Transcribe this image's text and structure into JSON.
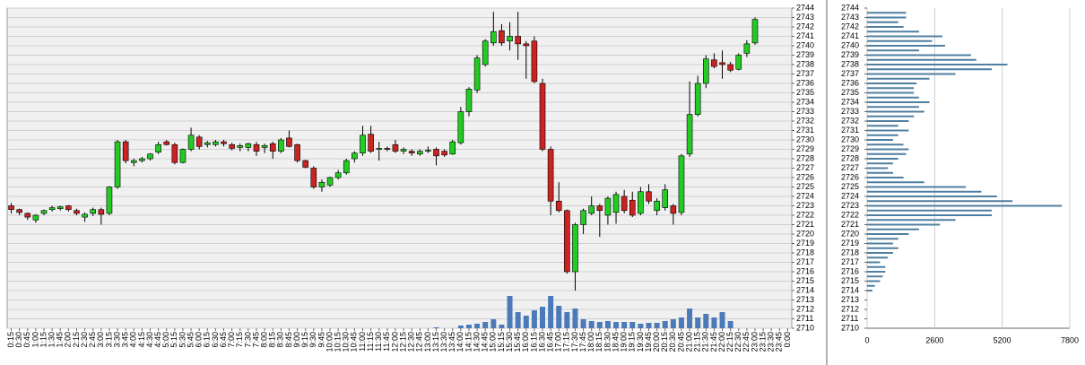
{
  "chart_data": [
    {
      "type": "candlestick",
      "categories": [
        "0:15",
        "0:30",
        "0:45",
        "1:00",
        "1:15",
        "1:30",
        "1:45",
        "2:00",
        "2:15",
        "2:30",
        "2:45",
        "3:00",
        "3:15",
        "3:30",
        "3:45",
        "4:00",
        "4:15",
        "4:30",
        "4:45",
        "5:00",
        "5:15",
        "5:30",
        "5:45",
        "6:00",
        "6:15",
        "6:30",
        "6:45",
        "7:00",
        "7:15",
        "7:30",
        "7:45",
        "8:00",
        "8:15",
        "8:30",
        "8:45",
        "9:00",
        "9:15",
        "9:30",
        "9:45",
        "10:00",
        "10:15",
        "10:30",
        "10:45",
        "11:00",
        "11:15",
        "11:30",
        "11:45",
        "12:00",
        "12:15",
        "12:30",
        "12:45",
        "13:00",
        "13:15",
        "13:30",
        "13:45",
        "14:00",
        "14:15",
        "14:30",
        "14:45",
        "15:00",
        "15:15",
        "15:30",
        "15:45",
        "16:00",
        "16:15",
        "16:30",
        "16:45",
        "17:00",
        "17:15",
        "17:30",
        "17:45",
        "18:00",
        "18:15",
        "18:30",
        "18:45",
        "19:00",
        "19:15",
        "19:30",
        "19:45",
        "20:00",
        "20:15",
        "20:30",
        "20:45",
        "21:00",
        "21:15",
        "21:30",
        "21:45",
        "22:00",
        "22:15",
        "22:30",
        "22:45",
        "23:00",
        "23:15",
        "23:30",
        "23:45",
        "0:00"
      ],
      "open": [
        2723,
        2722.6,
        2722.2,
        2721.5,
        2722.2,
        2722.6,
        2722.7,
        2723,
        2722.5,
        2721.8,
        2722.2,
        2722.6,
        2722.2,
        2725,
        2729.8,
        2727.6,
        2727.8,
        2728,
        2728.7,
        2729.8,
        2729.5,
        2727.6,
        2729,
        2730.3,
        2729.5,
        2729.5,
        2729.8,
        2729.5,
        2729.2,
        2729.2,
        2729.5,
        2729.2,
        2729.6,
        2728.8,
        2730.2,
        2729.5,
        2727.8,
        2727,
        2725,
        2725.2,
        2726,
        2726.5,
        2728,
        2728.6,
        2730.6,
        2729,
        2729.1,
        2729.5,
        2728.8,
        2728.8,
        2728.5,
        2728.8,
        2729,
        2728.8,
        2728.5,
        2729.7,
        2733,
        2735.3,
        2738,
        2740.3,
        2741.6,
        2740.5,
        2741,
        2740.2,
        2740.5,
        2736,
        2729,
        2723.5,
        2722.5,
        2716,
        2721,
        2722.2,
        2723,
        2722,
        2722.3,
        2724,
        2723.6,
        2722.2,
        2724.5,
        2722.5,
        2722.8,
        2723,
        2722.3,
        2728.5,
        2732.7,
        2736,
        2738.5,
        2738.2,
        2738,
        2737.5,
        2739.2,
        2740.3,
        null,
        null,
        null,
        null
      ],
      "high": [
        2723.3,
        2722.7,
        2722.3,
        2722.1,
        2722.6,
        2723,
        2723,
        2723.1,
        2722.7,
        2722.3,
        2722.8,
        2722.8,
        2725.1,
        2730,
        2730,
        2728,
        2728.2,
        2728.6,
        2729.8,
        2730,
        2729.7,
        2729.1,
        2731.3,
        2730.5,
        2729.9,
        2730,
        2730,
        2729.7,
        2729.6,
        2729.7,
        2729.8,
        2729.6,
        2729.8,
        2730.2,
        2731,
        2729.6,
        2727.9,
        2727.2,
        2725.8,
        2726.1,
        2726.8,
        2728,
        2728.8,
        2731.5,
        2731.5,
        2729.8,
        2729.3,
        2730,
        2729.2,
        2729,
        2729,
        2729.3,
        2729.2,
        2729,
        2730,
        2733.5,
        2735.6,
        2739,
        2740.7,
        2743.6,
        2742.3,
        2742.5,
        2743.6,
        2740.5,
        2741,
        2736.5,
        2729.3,
        2725.5,
        2722.6,
        2721.2,
        2722.7,
        2724,
        2723.2,
        2724,
        2724.5,
        2724.7,
        2724.5,
        2725,
        2725.3,
        2723.8,
        2725.3,
        2723.2,
        2728.5,
        2736.2,
        2736.8,
        2739,
        2739.2,
        2739.5,
        2738.3,
        2739.2,
        2740.6,
        2743,
        null,
        null,
        null,
        null
      ],
      "low": [
        2722.2,
        2722,
        2721.5,
        2721.2,
        2722,
        2722.4,
        2722.5,
        2722.4,
        2722,
        2721.3,
        2721.9,
        2721,
        2722,
        2724.8,
        2727.5,
        2727.2,
        2727.6,
        2727.8,
        2728.5,
        2729.4,
        2727.4,
        2727.5,
        2728.8,
        2729,
        2729.2,
        2729.3,
        2729.3,
        2728.9,
        2728.8,
        2728.8,
        2728.3,
        2728.6,
        2728,
        2728.6,
        2729.2,
        2727.6,
        2727,
        2724.8,
        2724.5,
        2725,
        2725.8,
        2726.3,
        2727.6,
        2728.3,
        2728.6,
        2727.8,
        2728.8,
        2728.6,
        2728.5,
        2728.3,
        2728.3,
        2728.6,
        2727.3,
        2728.2,
        2728.4,
        2729.5,
        2732.5,
        2735,
        2737.8,
        2740,
        2740,
        2739.5,
        2738.5,
        2736.5,
        2736,
        2728.8,
        2722,
        2722.3,
        2715.8,
        2714,
        2720,
        2722,
        2719.7,
        2721,
        2721.1,
        2722.2,
        2721.8,
        2722,
        2723.2,
        2722,
        2722.5,
        2721,
        2722,
        2728.2,
        2732.5,
        2735.5,
        2737.6,
        2736.5,
        2737.2,
        2737.4,
        2738.8,
        2740.1,
        null,
        null,
        null,
        null
      ],
      "close": [
        2722.6,
        2722.3,
        2721.8,
        2722,
        2722.5,
        2722.8,
        2722.9,
        2722.6,
        2722.2,
        2722.1,
        2722.6,
        2722.1,
        2725,
        2729.8,
        2727.8,
        2727.8,
        2728,
        2728.5,
        2729.5,
        2729.5,
        2727.6,
        2729,
        2730.5,
        2729.3,
        2729.7,
        2729.8,
        2729.6,
        2729.1,
        2729.4,
        2729.6,
        2728.8,
        2729.4,
        2728.8,
        2730,
        2729.3,
        2727.8,
        2727.1,
        2725,
        2725.5,
        2726,
        2726.5,
        2727.8,
        2728.6,
        2730.5,
        2728.8,
        2729.1,
        2729,
        2728.8,
        2729,
        2728.6,
        2728.8,
        2728.9,
        2728.3,
        2728.4,
        2729.8,
        2733,
        2735.4,
        2738.7,
        2740.5,
        2741.5,
        2740.3,
        2741,
        2740.2,
        2740,
        2736.2,
        2729,
        2723.5,
        2722.5,
        2716,
        2721,
        2722.5,
        2723,
        2722.5,
        2723.8,
        2724.2,
        2722.5,
        2722,
        2724.5,
        2723.5,
        2723.5,
        2724.7,
        2722.2,
        2728.3,
        2732.7,
        2736,
        2738.6,
        2737.8,
        2738,
        2737.4,
        2739,
        2740.2,
        2742.8,
        null,
        null,
        null,
        null
      ],
      "volume": [
        null,
        null,
        null,
        null,
        null,
        null,
        null,
        null,
        null,
        null,
        null,
        null,
        null,
        null,
        null,
        null,
        null,
        null,
        null,
        null,
        null,
        null,
        null,
        null,
        null,
        null,
        null,
        null,
        null,
        null,
        null,
        null,
        null,
        null,
        null,
        null,
        null,
        null,
        null,
        null,
        null,
        null,
        null,
        null,
        null,
        null,
        null,
        null,
        null,
        null,
        null,
        null,
        1,
        null,
        null,
        3,
        4,
        5,
        7,
        10,
        4,
        36,
        18,
        14,
        20,
        24,
        36,
        25,
        18,
        22,
        10,
        8,
        7,
        8,
        7,
        7,
        7,
        5,
        6,
        6,
        8,
        10,
        12,
        22,
        12,
        16,
        12,
        18,
        8,
        null,
        null,
        null,
        null,
        null,
        null,
        null
      ],
      "up_color": "#22cc22",
      "down_color": "#cc2222",
      "volume_color": "#4a7ab8",
      "ylim": [
        2710,
        2744
      ],
      "yticks": [
        2710,
        2711,
        2712,
        2713,
        2714,
        2715,
        2716,
        2717,
        2718,
        2719,
        2720,
        2721,
        2722,
        2723,
        2724,
        2725,
        2726,
        2727,
        2728,
        2729,
        2730,
        2731,
        2732,
        2733,
        2734,
        2735,
        2736,
        2737,
        2738,
        2739,
        2740,
        2741,
        2742,
        2743,
        2744
      ],
      "grid": true
    },
    {
      "type": "bar",
      "orientation": "horizontal",
      "y": [
        2743.5,
        2743,
        2742.5,
        2742,
        2741.5,
        2741,
        2740.5,
        2740,
        2739.5,
        2739,
        2738.5,
        2738,
        2737.5,
        2737,
        2736.5,
        2736,
        2735.5,
        2735,
        2734.5,
        2734,
        2733.5,
        2733,
        2732.5,
        2732,
        2731.5,
        2731,
        2730.5,
        2730,
        2729.5,
        2729,
        2728.5,
        2728,
        2727.5,
        2727,
        2726.5,
        2726,
        2725.5,
        2725,
        2724.5,
        2724,
        2723.5,
        2723,
        2722.5,
        2722,
        2721.5,
        2721,
        2720.5,
        2720,
        2719.5,
        2719,
        2718.5,
        2718,
        2717.5,
        2717,
        2716.5,
        2716,
        2715.5,
        2715,
        2714.5,
        2714
      ],
      "values": [
        1500,
        1500,
        1200,
        1400,
        2000,
        2900,
        2500,
        3000,
        2000,
        4000,
        4200,
        5400,
        4800,
        3400,
        2400,
        1900,
        1800,
        1800,
        2000,
        2400,
        2000,
        2200,
        1800,
        1600,
        1200,
        1600,
        1200,
        1000,
        1400,
        1600,
        1500,
        1200,
        1000,
        800,
        1000,
        1400,
        2200,
        3800,
        4400,
        5000,
        5600,
        7500,
        4800,
        4800,
        3400,
        2800,
        2000,
        1600,
        1200,
        1000,
        1200,
        1000,
        800,
        500,
        700,
        700,
        600,
        500,
        300,
        200
      ],
      "color": "#4f7fa0",
      "xlim": [
        0,
        7800
      ],
      "xticks": [
        0,
        2600,
        5200,
        7800
      ],
      "ylim": [
        2710,
        2744
      ],
      "yticks": [
        2710,
        2711,
        2712,
        2713,
        2714,
        2715,
        2716,
        2717,
        2718,
        2719,
        2720,
        2721,
        2722,
        2723,
        2724,
        2725,
        2726,
        2727,
        2728,
        2729,
        2730,
        2731,
        2732,
        2733,
        2734,
        2735,
        2736,
        2737,
        2738,
        2739,
        2740,
        2741,
        2742,
        2743,
        2744
      ],
      "grid": true
    }
  ]
}
